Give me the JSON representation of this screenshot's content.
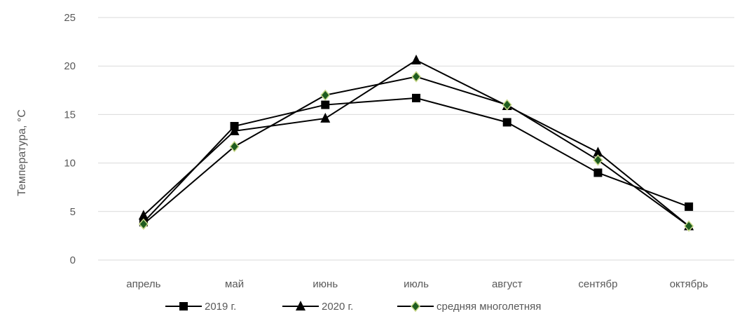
{
  "chart_data": {
    "type": "line",
    "categories": [
      "апрель",
      "май",
      "июнь",
      "июль",
      "август",
      "сентябр",
      "октябрь"
    ],
    "ylabel": "Температура, °С",
    "xlabel": "",
    "title": "",
    "ylim": [
      0,
      25
    ],
    "yticks": [
      0,
      5,
      10,
      15,
      20,
      25
    ],
    "grid": true,
    "legend_position": "bottom",
    "series": [
      {
        "name": "2019 г.",
        "marker": "square",
        "line_color": "#000000",
        "marker_color": "#000000",
        "values": [
          3.9,
          13.8,
          16.0,
          16.7,
          14.2,
          9.0,
          5.5
        ]
      },
      {
        "name": "2020 г.",
        "marker": "triangle",
        "line_color": "#000000",
        "marker_color": "#000000",
        "values": [
          4.6,
          13.3,
          14.6,
          20.6,
          15.9,
          11.1,
          3.5
        ]
      },
      {
        "name": "средняя многолетняя",
        "marker": "diamond",
        "line_color": "#000000",
        "marker_color": "#1f5c1f",
        "marker_edge": "#c9d98a",
        "values": [
          3.7,
          11.7,
          17.0,
          18.9,
          16.0,
          10.3,
          3.5
        ]
      }
    ]
  }
}
